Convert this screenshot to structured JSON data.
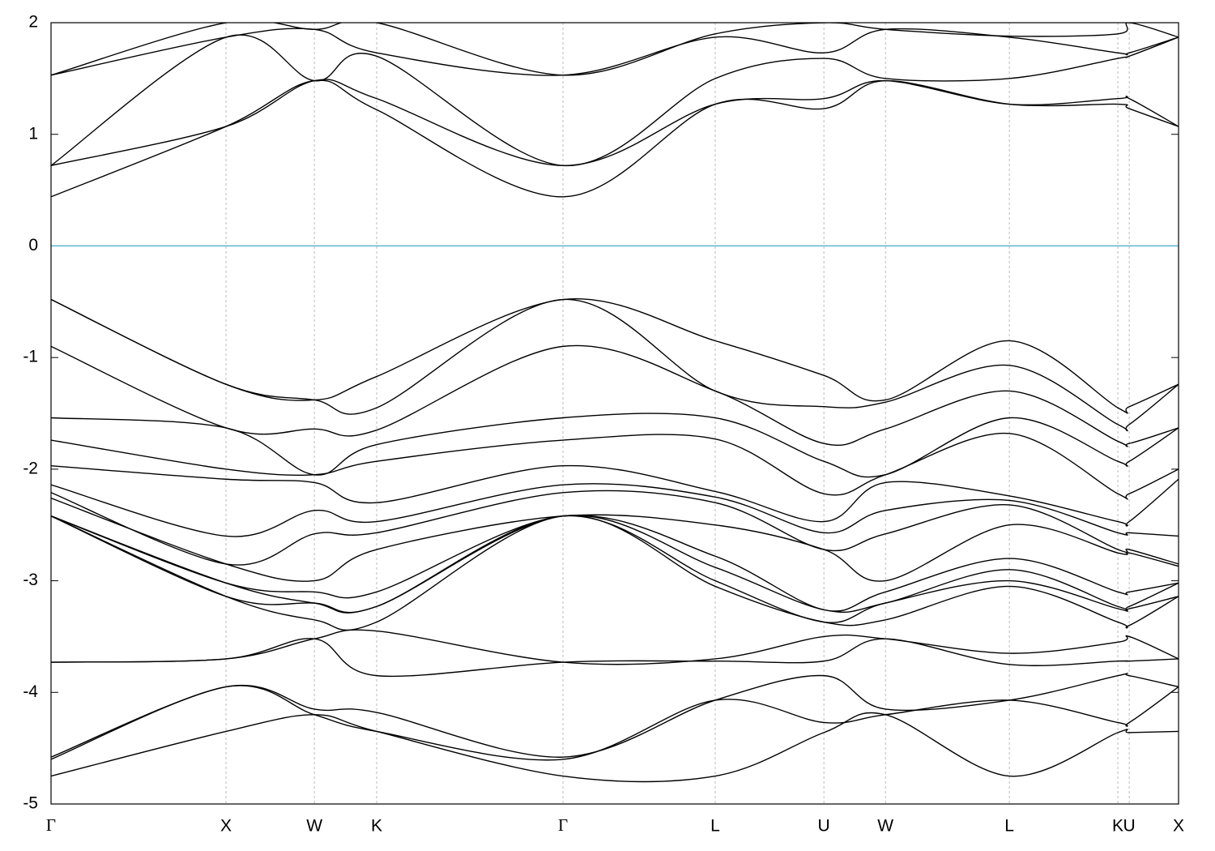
{
  "chart_data": {
    "type": "line",
    "x": [
      0,
      1.0,
      1.505,
      1.861,
      2.926,
      3.796,
      4.417,
      4.769,
      5.477,
      6.097,
      6.162,
      6.444
    ],
    "xlim": [
      0,
      6.444
    ],
    "xticks": [
      {
        "value": 0,
        "label": "Γ"
      },
      {
        "value": 1.0,
        "label": "X"
      },
      {
        "value": 1.505,
        "label": "W"
      },
      {
        "value": 1.861,
        "label": "K"
      },
      {
        "value": 2.926,
        "label": "Γ"
      },
      {
        "value": 3.796,
        "label": "L"
      },
      {
        "value": 4.417,
        "label": "U"
      },
      {
        "value": 4.769,
        "label": "W"
      },
      {
        "value": 5.477,
        "label": "L"
      },
      {
        "value": 6.097,
        "label": "K"
      },
      {
        "value": 6.162,
        "label": "U"
      },
      {
        "value": 6.444,
        "label": "X"
      }
    ],
    "ylim": [
      -5,
      2
    ],
    "yticks": [
      -5,
      -4,
      -3,
      -2,
      -1,
      0,
      1,
      2
    ],
    "grid": true,
    "color": "#000000",
    "reference_line": {
      "value": 0,
      "color": "#5fb4d2"
    },
    "series": [
      {
        "values": [
          1.53,
          2.0,
          1.94,
          2.0,
          1.53,
          1.9,
          2.0,
          1.94,
          1.88,
          1.9,
          2.0,
          1.87
        ]
      },
      {
        "values": [
          1.53,
          1.87,
          1.94,
          1.73,
          1.53,
          1.87,
          1.73,
          1.94,
          1.87,
          1.73,
          1.73,
          1.87
        ]
      },
      {
        "values": [
          0.72,
          1.87,
          1.48,
          1.7,
          0.72,
          1.5,
          1.68,
          1.5,
          1.5,
          1.68,
          1.7,
          1.87
        ]
      },
      {
        "values": [
          0.72,
          1.07,
          1.48,
          1.32,
          0.72,
          1.27,
          1.32,
          1.48,
          1.27,
          1.32,
          1.32,
          1.07
        ]
      },
      {
        "values": [
          0.44,
          1.07,
          1.48,
          1.22,
          0.44,
          1.27,
          1.23,
          1.48,
          1.27,
          1.27,
          1.23,
          1.07
        ]
      },
      {
        "values": [
          -0.48,
          -1.24,
          -1.38,
          -1.17,
          -0.48,
          -0.85,
          -1.16,
          -1.38,
          -0.85,
          -1.45,
          -1.44,
          -1.24
        ]
      },
      {
        "values": [
          -0.48,
          -1.24,
          -1.38,
          -1.45,
          -0.48,
          -1.3,
          -1.44,
          -1.4,
          -1.07,
          -1.6,
          -1.6,
          -1.24
        ]
      },
      {
        "values": [
          -0.9,
          -1.63,
          -1.64,
          -1.65,
          -0.9,
          -1.3,
          -1.77,
          -1.64,
          -1.3,
          -1.75,
          -1.77,
          -1.63
        ]
      },
      {
        "values": [
          -1.54,
          -1.63,
          -2.05,
          -1.78,
          -1.54,
          -1.54,
          -1.93,
          -2.05,
          -1.54,
          -1.93,
          -1.93,
          -1.63
        ]
      },
      {
        "values": [
          -1.74,
          -2.0,
          -2.05,
          -1.93,
          -1.74,
          -1.73,
          -2.22,
          -2.05,
          -1.68,
          -2.22,
          -2.22,
          -2.0
        ]
      },
      {
        "values": [
          -1.97,
          -2.09,
          -2.12,
          -2.3,
          -1.97,
          -2.2,
          -2.47,
          -2.12,
          -2.24,
          -2.47,
          -2.47,
          -2.09
        ]
      },
      {
        "values": [
          -2.14,
          -2.6,
          -2.37,
          -2.47,
          -2.14,
          -2.25,
          -2.57,
          -2.37,
          -2.28,
          -2.57,
          -2.57,
          -2.6
        ]
      },
      {
        "values": [
          -2.21,
          -2.85,
          -2.58,
          -2.57,
          -2.21,
          -2.3,
          -2.72,
          -2.58,
          -2.32,
          -2.72,
          -2.72,
          -2.85
        ]
      },
      {
        "values": [
          -2.26,
          -2.85,
          -3.0,
          -2.72,
          -2.42,
          -2.5,
          -2.72,
          -3.0,
          -2.5,
          -2.75,
          -2.75,
          -2.87
        ]
      },
      {
        "values": [
          -2.42,
          -3.02,
          -3.1,
          -3.1,
          -2.42,
          -2.78,
          -3.26,
          -3.1,
          -2.8,
          -3.1,
          -3.1,
          -3.02
        ]
      },
      {
        "values": [
          -2.42,
          -3.02,
          -3.2,
          -3.23,
          -2.42,
          -2.88,
          -3.26,
          -3.2,
          -2.9,
          -3.23,
          -3.23,
          -3.02
        ]
      },
      {
        "values": [
          -2.42,
          -3.14,
          -3.2,
          -3.23,
          -2.42,
          -3.0,
          -3.37,
          -3.2,
          -3.0,
          -3.25,
          -3.25,
          -3.14
        ]
      },
      {
        "values": [
          -2.42,
          -3.14,
          -3.35,
          -3.37,
          -2.42,
          -3.05,
          -3.37,
          -3.35,
          -3.05,
          -3.37,
          -3.4,
          -3.14
        ]
      },
      {
        "values": [
          -3.73,
          -3.7,
          -3.52,
          -3.45,
          -3.73,
          -3.7,
          -3.5,
          -3.52,
          -3.65,
          -3.55,
          -3.5,
          -3.7
        ]
      },
      {
        "values": [
          -3.73,
          -3.7,
          -3.52,
          -3.85,
          -3.73,
          -3.72,
          -3.72,
          -3.52,
          -3.75,
          -3.72,
          -3.72,
          -3.7
        ]
      },
      {
        "values": [
          -4.58,
          -3.95,
          -4.15,
          -4.18,
          -4.58,
          -4.07,
          -3.85,
          -4.15,
          -4.07,
          -3.85,
          -3.85,
          -3.95
        ]
      },
      {
        "values": [
          -4.6,
          -3.95,
          -4.2,
          -4.35,
          -4.6,
          -4.07,
          -4.27,
          -4.2,
          -4.07,
          -4.27,
          -4.27,
          -3.95
        ]
      },
      {
        "values": [
          -4.75,
          -4.35,
          -4.2,
          -4.35,
          -4.75,
          -4.75,
          -4.36,
          -4.2,
          -4.75,
          -4.36,
          -4.36,
          -4.35
        ]
      }
    ]
  }
}
